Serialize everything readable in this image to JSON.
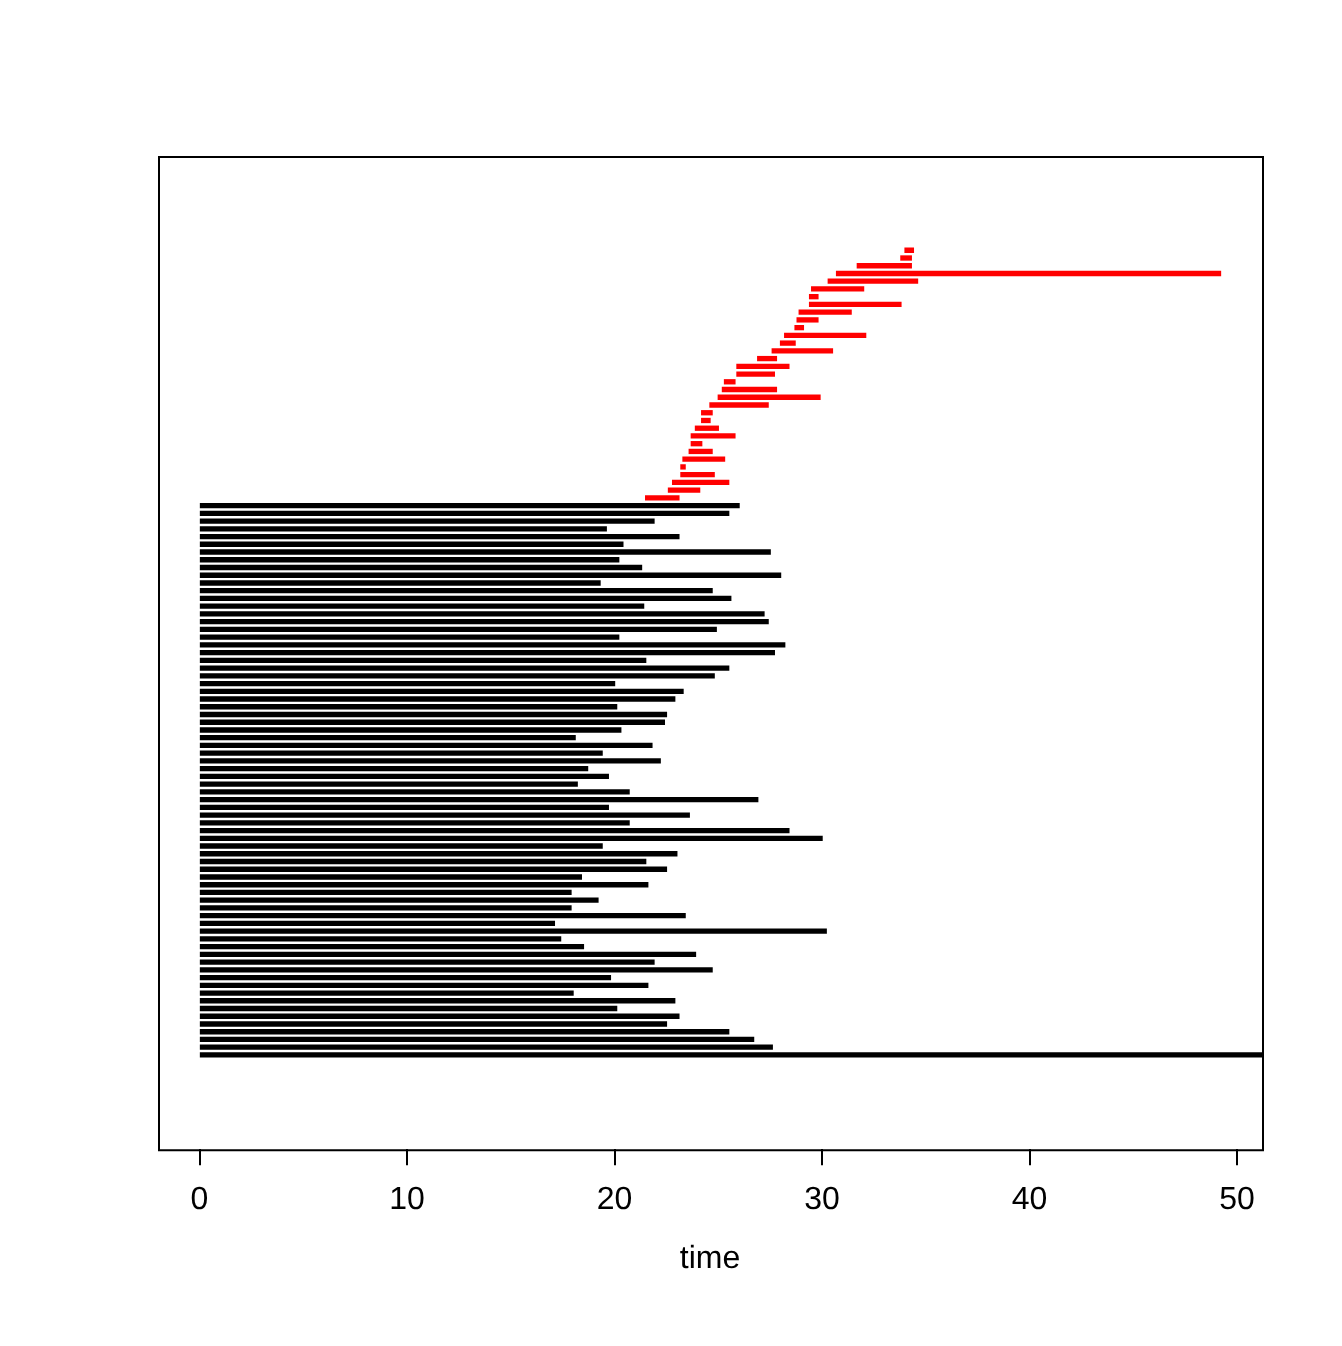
{
  "chart_data": {
    "type": "bar",
    "orientation": "horizontal",
    "xlabel": "time",
    "xlim": [
      -2,
      51.2
    ],
    "xticks": [
      0,
      10,
      20,
      30,
      40,
      50
    ],
    "grid": false,
    "legend": false,
    "categories": [
      null,
      null,
      null,
      null,
      null,
      null,
      null,
      null,
      null,
      null,
      null,
      null,
      null,
      null,
      null,
      null,
      null,
      null,
      null,
      null,
      null,
      null,
      null,
      null,
      null,
      null,
      null,
      null,
      null,
      null,
      null,
      null,
      null,
      null,
      null,
      null,
      null,
      null,
      null,
      null,
      null,
      null,
      null,
      null,
      null,
      null,
      null,
      null,
      null,
      null,
      null,
      null,
      null,
      null,
      null,
      null,
      null,
      null,
      null,
      null,
      null,
      null,
      null,
      null,
      null,
      null,
      null,
      null,
      null,
      null,
      null,
      null,
      null,
      null,
      null,
      null,
      null,
      null,
      null,
      null,
      null,
      null,
      null,
      null,
      null,
      null,
      null,
      null,
      null,
      null,
      null,
      null,
      null,
      null,
      null,
      null,
      null,
      null,
      null,
      null,
      null,
      null,
      null,
      null,
      null
    ],
    "base": [
      34.0,
      33.8,
      31.7,
      30.7,
      30.3,
      29.5,
      29.4,
      29.4,
      28.9,
      28.8,
      28.7,
      28.2,
      28.0,
      27.6,
      26.9,
      25.9,
      25.9,
      25.3,
      25.2,
      25.0,
      24.6,
      24.2,
      24.2,
      23.9,
      23.7,
      23.7,
      23.6,
      23.3,
      23.2,
      23.2,
      22.8,
      22.6,
      21.5,
      0,
      0,
      0,
      0,
      0,
      0,
      0,
      0,
      0,
      0,
      0,
      0,
      0,
      0,
      0,
      0,
      0,
      0,
      0,
      0,
      0,
      0,
      0,
      0,
      0,
      0,
      0,
      0,
      0,
      0,
      0,
      0,
      0,
      0,
      0,
      0,
      0,
      0,
      0,
      0,
      0,
      0,
      0,
      0,
      0,
      0,
      0,
      0,
      0,
      0,
      0,
      0,
      0,
      0,
      0,
      0,
      0,
      0,
      0,
      0,
      0,
      0,
      0,
      0,
      0,
      0,
      0,
      0,
      0,
      0,
      0,
      0
    ],
    "values": [
      0.4,
      0.5,
      2.6,
      18.5,
      4.3,
      2.5,
      0.4,
      4.4,
      2.5,
      1.0,
      0.4,
      3.9,
      0.7,
      2.9,
      0.9,
      2.5,
      1.8,
      0.5,
      2.6,
      4.9,
      2.8,
      0.5,
      0.4,
      1.1,
      2.1,
      0.5,
      1.1,
      2.0,
      0.2,
      1.6,
      2.7,
      1.5,
      1.6,
      26.0,
      25.5,
      21.9,
      19.6,
      23.1,
      20.4,
      27.5,
      20.2,
      21.3,
      28.0,
      19.3,
      24.7,
      25.6,
      21.4,
      27.2,
      27.4,
      24.9,
      20.2,
      28.2,
      27.7,
      21.5,
      25.5,
      24.8,
      20.0,
      23.3,
      22.9,
      20.1,
      22.5,
      22.4,
      20.3,
      18.1,
      21.8,
      19.4,
      22.2,
      18.7,
      19.7,
      18.2,
      20.7,
      26.9,
      19.7,
      23.6,
      20.7,
      28.4,
      30.0,
      19.4,
      23.0,
      21.5,
      22.5,
      18.4,
      21.6,
      17.9,
      19.2,
      17.9,
      23.4,
      17.1,
      30.2,
      17.4,
      18.5,
      23.9,
      21.9,
      24.7,
      19.8,
      21.6,
      18.0,
      22.9,
      20.1,
      23.1,
      22.5,
      25.5,
      26.7,
      27.6,
      51.2
    ],
    "colors": [
      "#ff0000",
      "#ff0000",
      "#ff0000",
      "#ff0000",
      "#ff0000",
      "#ff0000",
      "#ff0000",
      "#ff0000",
      "#ff0000",
      "#ff0000",
      "#ff0000",
      "#ff0000",
      "#ff0000",
      "#ff0000",
      "#ff0000",
      "#ff0000",
      "#ff0000",
      "#ff0000",
      "#ff0000",
      "#ff0000",
      "#ff0000",
      "#ff0000",
      "#ff0000",
      "#ff0000",
      "#ff0000",
      "#ff0000",
      "#ff0000",
      "#ff0000",
      "#ff0000",
      "#ff0000",
      "#ff0000",
      "#ff0000",
      "#ff0000",
      "#000000",
      "#000000",
      "#000000",
      "#000000",
      "#000000",
      "#000000",
      "#000000",
      "#000000",
      "#000000",
      "#000000",
      "#000000",
      "#000000",
      "#000000",
      "#000000",
      "#000000",
      "#000000",
      "#000000",
      "#000000",
      "#000000",
      "#000000",
      "#000000",
      "#000000",
      "#000000",
      "#000000",
      "#000000",
      "#000000",
      "#000000",
      "#000000",
      "#000000",
      "#000000",
      "#000000",
      "#000000",
      "#000000",
      "#000000",
      "#000000",
      "#000000",
      "#000000",
      "#000000",
      "#000000",
      "#000000",
      "#000000",
      "#000000",
      "#000000",
      "#000000",
      "#000000",
      "#000000",
      "#000000",
      "#000000",
      "#000000",
      "#000000",
      "#000000",
      "#000000",
      "#000000",
      "#000000",
      "#000000",
      "#000000",
      "#000000",
      "#000000",
      "#000000",
      "#000000",
      "#000000",
      "#000000",
      "#000000",
      "#000000",
      "#000000",
      "#000000",
      "#000000",
      "#000000",
      "#000000",
      "#000000",
      "#000000",
      "#000000"
    ]
  }
}
